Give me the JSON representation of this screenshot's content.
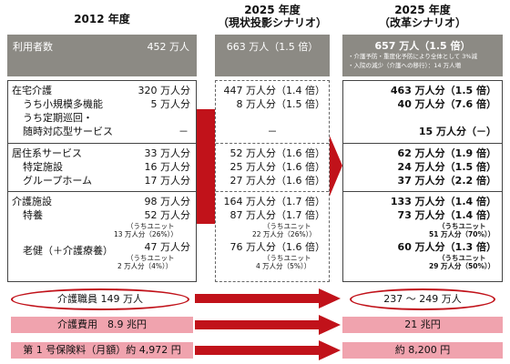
{
  "headers": {
    "col2012": "2012 年度",
    "col2025a_year": "2025 年度",
    "col2025a_sub": "（現状投影シナリオ）",
    "col2025b_year": "2025 年度",
    "col2025b_sub": "（改革シナリオ）"
  },
  "users": {
    "label": "利用者数",
    "v2012": "452 万人",
    "v2025a": "663 万人（1.5 倍）",
    "v2025b": "657 万人（1.5 倍）",
    "note1": "・介護予防・重度化予防により全体として 3%減",
    "note2": "・入院の減少（介護への移行）：14 万人増"
  },
  "home": {
    "label": "在宅介護",
    "v2012": "320 万人分",
    "v2025a": "447 万人分（1.4 倍）",
    "v2025b": "463 万人分（1.5 倍）",
    "small_label": "うち小規模多機能",
    "small_2012": "5 万人分",
    "small_2025a": "8 万人分（1.5 倍）",
    "small_2025b": "40 万人分（7.6 倍）",
    "periodic_label1": "うち定期巡回・",
    "periodic_label2": "随時対応型サービス",
    "periodic_2012": "－",
    "periodic_2025a": "－",
    "periodic_2025b": "15 万人分（－）"
  },
  "residential": {
    "label": "居住系サービス",
    "v2012": "33 万人分",
    "v2025a": "52 万人分（1.6 倍）",
    "v2025b": "62 万人分（1.9 倍）",
    "specified_label": "特定施設",
    "specified_2012": "16 万人分",
    "specified_2025a": "25 万人分（1.6 倍）",
    "specified_2025b": "24 万人分（1.5 倍）",
    "group_label": "グループホーム",
    "group_2012": "17 万人分",
    "group_2025a": "27 万人分（1.6 倍）",
    "group_2025b": "37 万人分（2.2 倍）"
  },
  "facility": {
    "label": "介護施設",
    "v2012": "98 万人分",
    "v2025a": "164 万人分（1.7 倍）",
    "v2025b": "133 万人分（1.4 倍）",
    "tokuyo_label": "特養",
    "tokuyo_2012": "52 万人分",
    "tokuyo_2025a": "87 万人分（1.7 倍）",
    "tokuyo_2025b": "73 万人分（1.4 倍）",
    "unit_label": "（うちユニット",
    "tokuyo_unit_2012": "13 万人分（26%））",
    "tokuyo_unit_2025a": "22 万人分（26%））",
    "tokuyo_unit_2025b": "51 万人分（70%））",
    "roken_label": "老健（＋介護療養）",
    "roken_2012": "47 万人分",
    "roken_2025a": "76 万人分（1.6 倍）",
    "roken_2025b": "60 万人分（1.3 倍）",
    "roken_unit_2012": "2 万人分（4%））",
    "roken_unit_2025a": "4 万人分（5%））",
    "roken_unit_2025b": "29 万人分（50%））"
  },
  "staff": {
    "v2012": "介護職員 149 万人",
    "v2025": "237 ～ 249 万人"
  },
  "cost": {
    "v2012": "介護費用　8.9 兆円",
    "v2025": "21 兆円"
  },
  "premium": {
    "v2012": "第 1 号保険料（月額）約 4,972 円",
    "v2025": "約 8,200 円"
  },
  "colors": {
    "arrow_red": "#c1121a",
    "header_gray": "#8c8a84",
    "pink": "#f0a3ae"
  }
}
